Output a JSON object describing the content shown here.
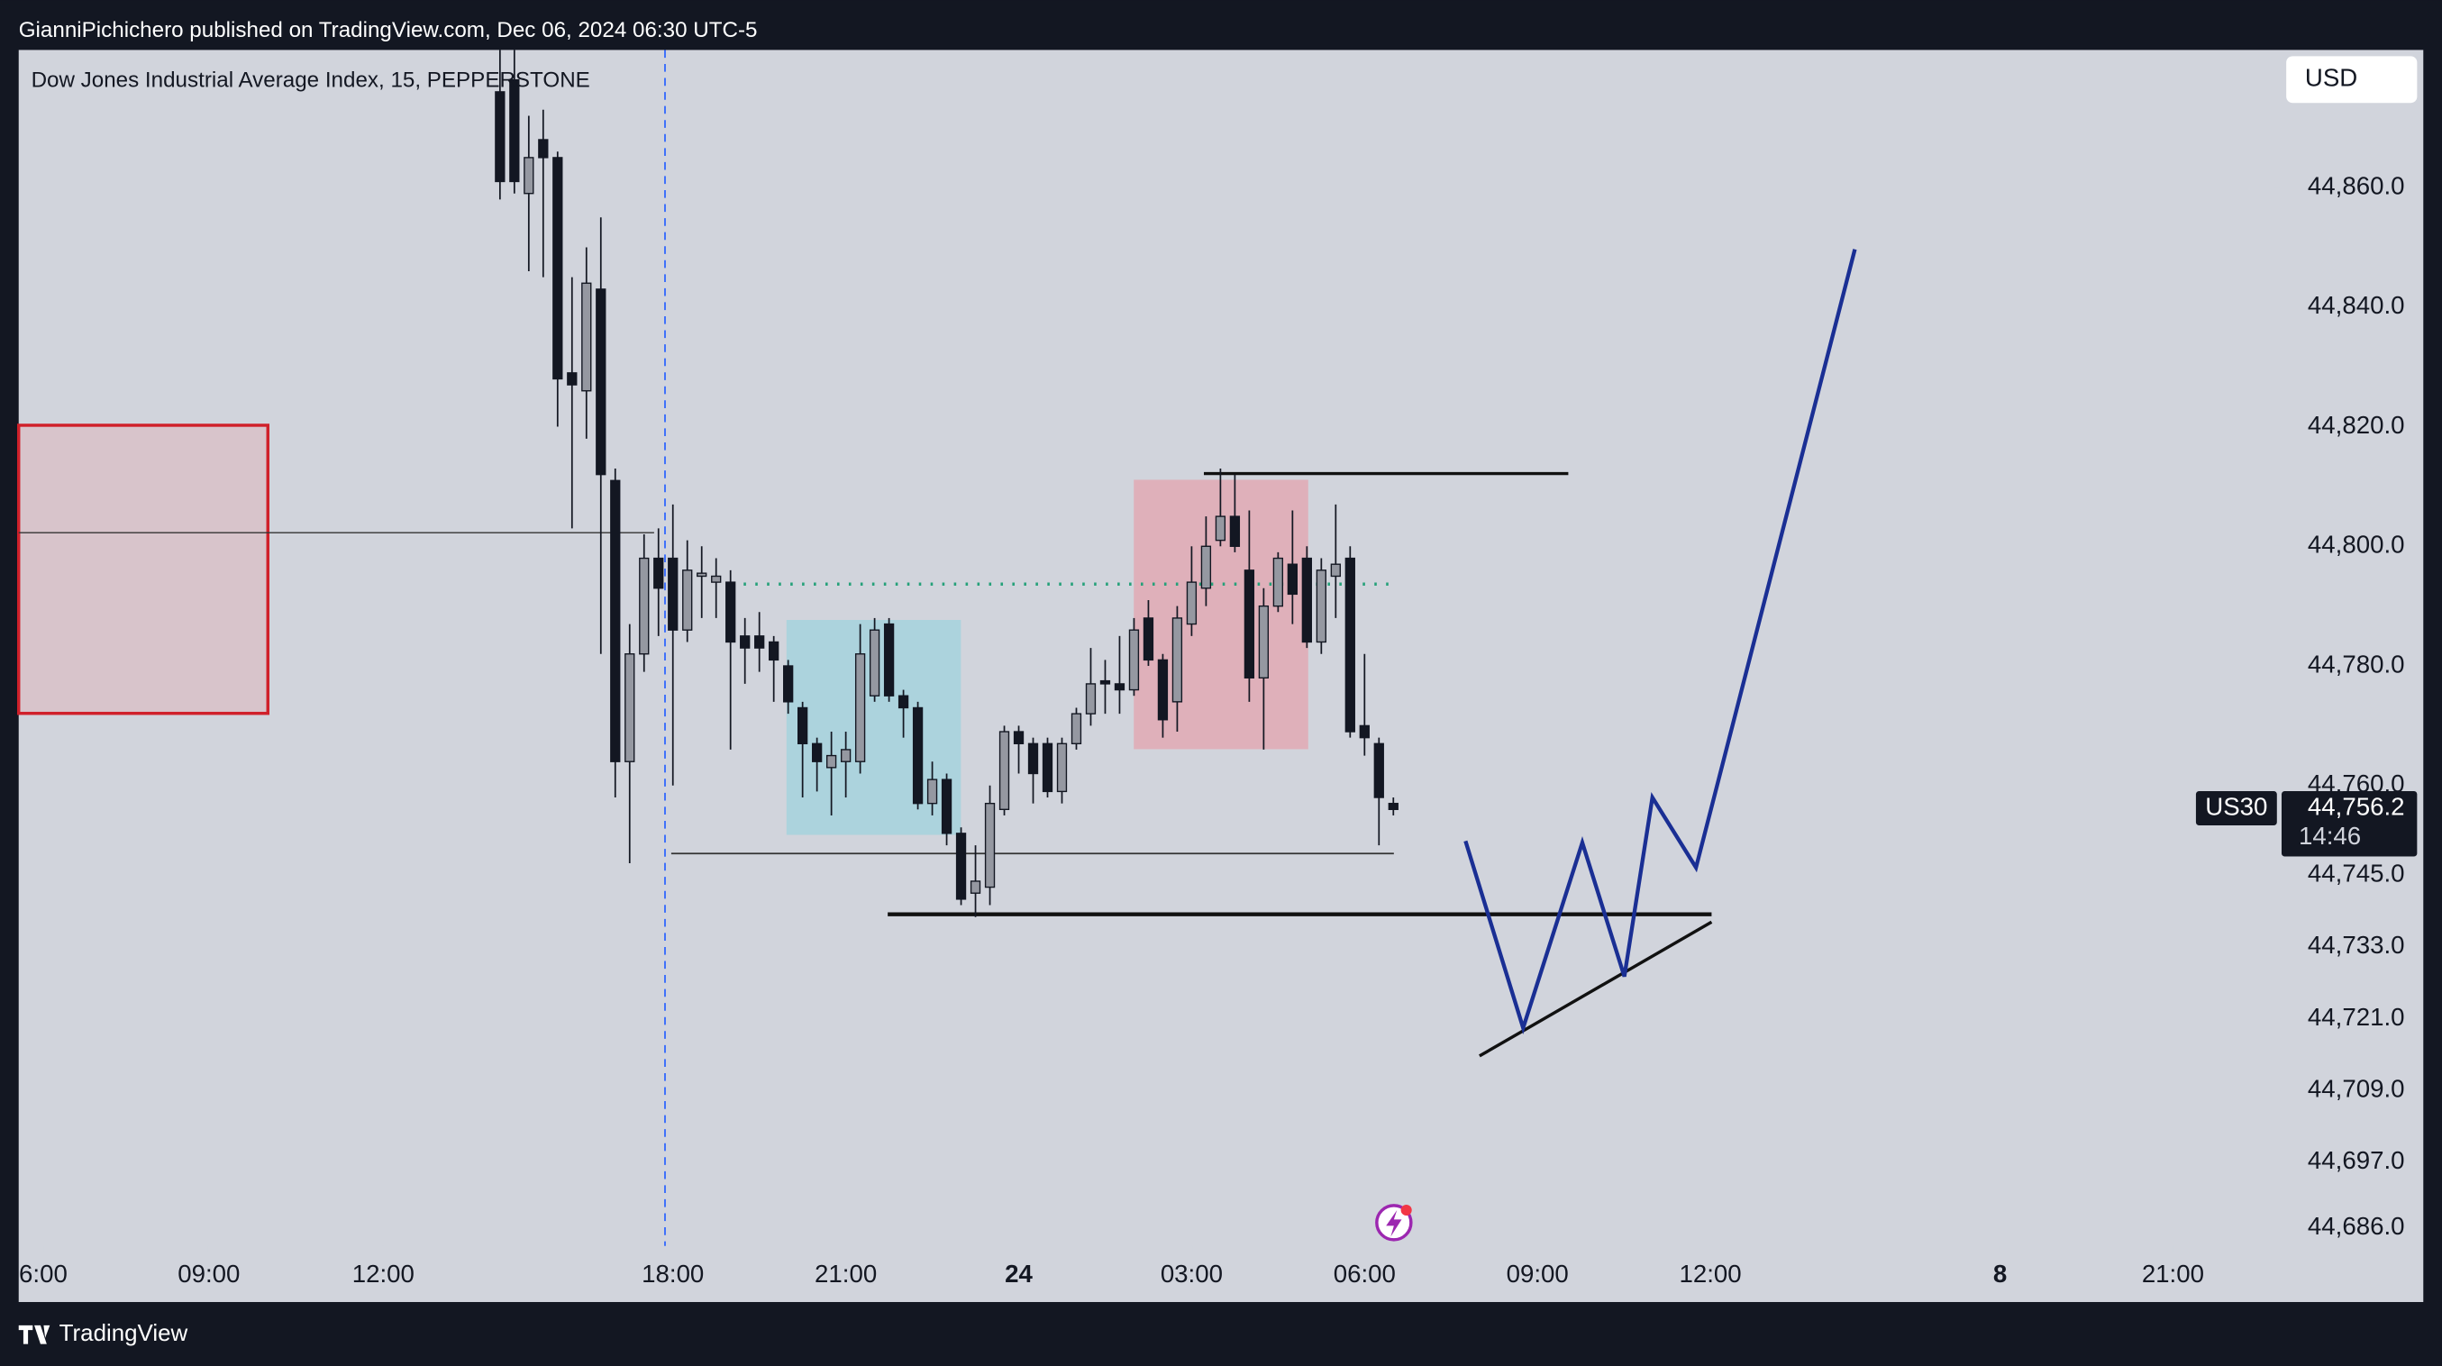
{
  "chart_data": {
    "type": "candlestick",
    "header": "GianniPichichero published on TradingView.com, Dec 06, 2024 06:30 UTC-5",
    "title": "Dow Jones Industrial Average Index, 15, PEPPERSTONE",
    "currency": "USD",
    "symbol": "US30",
    "last_price": {
      "value": 44756.2,
      "label": "44,756.2"
    },
    "countdown": "14:46",
    "brand": "TradingView",
    "up_color": "#9598a1",
    "down_color": "#131722",
    "x": [
      -12,
      -11,
      -10,
      -9,
      -8,
      -7,
      -6,
      -5,
      -4,
      -3,
      -2,
      -1,
      0,
      1,
      2,
      3,
      4,
      5,
      6,
      7,
      8,
      9,
      10,
      11,
      12,
      13,
      14,
      15,
      16,
      17,
      18,
      19,
      20,
      21,
      22,
      23,
      24,
      25,
      26,
      27,
      28,
      29,
      30,
      31,
      32,
      33,
      34,
      35,
      36,
      37,
      38,
      39,
      40,
      41,
      42,
      43,
      44,
      45,
      46,
      47,
      48,
      49,
      50
    ],
    "open": [
      44876,
      44878,
      44859,
      44868,
      44865,
      44829,
      44826,
      44843,
      44811,
      44764,
      44782,
      44798,
      44798,
      44786,
      44795,
      44794,
      44794,
      44785,
      44785,
      44784,
      44780,
      44773,
      44767,
      44763,
      44764,
      44764,
      44775,
      44787,
      44775,
      44773,
      44757,
      44761,
      44752,
      44742,
      44743,
      44756,
      44769,
      44767,
      44767,
      44759,
      44767,
      44772,
      44777.5,
      44777,
      44776,
      44788,
      44781,
      44774,
      44787,
      44793,
      44801,
      44805,
      44796,
      44778,
      44790,
      44797,
      44798,
      44784,
      44795,
      44798,
      44770,
      44767,
      44757
    ],
    "high": [
      44883,
      44883,
      44872,
      44873,
      44866,
      44845,
      44850,
      44855,
      44813,
      44787,
      44802,
      44803,
      44807,
      44801,
      44800,
      44798,
      44796,
      44788,
      44789,
      44785,
      44781,
      44774,
      44768,
      44769,
      44769,
      44787,
      44788,
      44788,
      44776,
      44774,
      44764,
      44762,
      44753,
      44750,
      44760,
      44770,
      44770,
      44768,
      44768,
      44768,
      44773,
      44783,
      44781,
      44785,
      44788,
      44791,
      44782,
      44790,
      44800,
      44805,
      44813,
      44812,
      44806,
      44793,
      44799,
      44806,
      44800,
      44798,
      44807,
      44800,
      44782,
      44768,
      44758
    ],
    "low": [
      44858,
      44859,
      44846,
      44845,
      44820,
      44803,
      44818,
      44782,
      44758,
      44747,
      44779,
      44785,
      44760,
      44784,
      44788,
      44788,
      44766,
      44777,
      44779,
      44774,
      44772,
      44758,
      44759,
      44755,
      44758,
      44762,
      44774,
      44774,
      44768,
      44756,
      44755,
      44750,
      44740,
      44738,
      44740,
      44755,
      44762,
      44757,
      44758,
      44757,
      44766,
      44770,
      44772,
      44772,
      44775,
      44780,
      44768,
      44769,
      44785,
      44790,
      44800,
      44799,
      44774,
      44766,
      44789,
      44787,
      44783,
      44782,
      44788,
      44768,
      44765,
      44750,
      44755
    ],
    "close": [
      44861,
      44861,
      44865,
      44865,
      44828,
      44827,
      44844,
      44812,
      44764,
      44782,
      44798,
      44793,
      44786,
      44796,
      44795.5,
      44795,
      44784,
      44783,
      44783,
      44781,
      44774,
      44767,
      44764,
      44765,
      44766,
      44782,
      44786,
      44775,
      44773,
      44757,
      44761,
      44752,
      44741,
      44744,
      44757,
      44769,
      44767,
      44762,
      44759,
      44767,
      44772,
      44777,
      44777,
      44776,
      44786,
      44781,
      44771,
      44788,
      44794,
      44800,
      44805,
      44800,
      44778,
      44790,
      44798,
      44792,
      44784,
      44796,
      44797,
      44769,
      44768,
      44758,
      44756
    ],
    "xlim": [
      -45.4,
      111.1
    ],
    "xticks": [
      {
        "value": -43.7,
        "label": "6:00"
      },
      {
        "value": -32.2,
        "label": "09:00"
      },
      {
        "value": -20.1,
        "label": "12:00"
      },
      {
        "value": 0,
        "label": "18:00"
      },
      {
        "value": 12,
        "label": "21:00"
      },
      24,
      {
        "value": 36,
        "label": "03:00"
      },
      {
        "value": 48,
        "label": "06:00"
      },
      {
        "value": 60,
        "label": "09:00"
      },
      {
        "value": 72,
        "label": "12:00"
      },
      {
        "value": 92.1,
        "label": "8"
      },
      {
        "value": 104.1,
        "label": "21:00"
      }
    ],
    "ylim": [
      44683,
      44883
    ],
    "yticks": [
      {
        "value": 44686,
        "label": "44,686.0"
      },
      {
        "value": 44697,
        "label": "44,697.0"
      },
      {
        "value": 44709,
        "label": "44,709.0"
      },
      {
        "value": 44721,
        "label": "44,721.0"
      },
      {
        "value": 44733,
        "label": "44,733.0"
      },
      {
        "value": 44745,
        "label": "44,745.0"
      },
      {
        "value": 44760,
        "label": "44,760.0"
      },
      {
        "value": 44780,
        "label": "44,780.0"
      },
      {
        "value": 44800,
        "label": "44,800.0"
      },
      {
        "value": 44820,
        "label": "44,820.0"
      },
      {
        "value": 44840,
        "label": "44,840.0"
      },
      {
        "value": 44860,
        "label": "44,860.0"
      }
    ]
  }
}
